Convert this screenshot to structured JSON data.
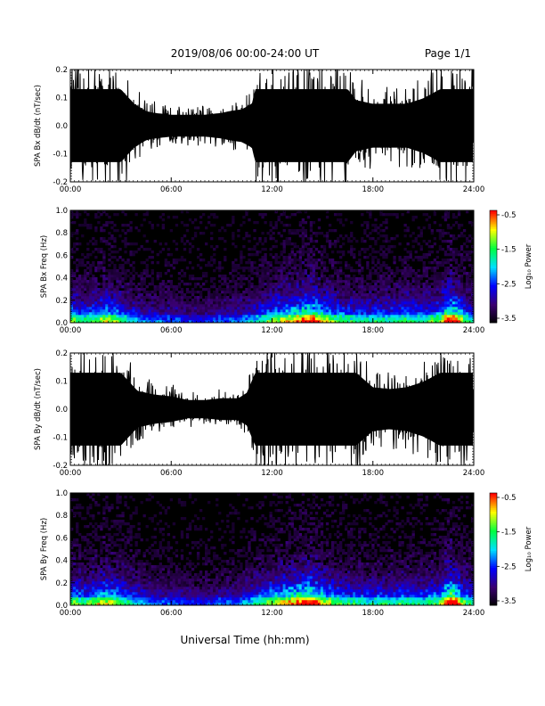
{
  "header": {
    "title": "2019/08/06  00:00-24:00 UT",
    "page": "Page 1/1"
  },
  "x_axis": {
    "label": "Universal Time (hh:mm)",
    "ticks": [
      "00:00",
      "06:00",
      "12:00",
      "18:00",
      "24:00"
    ],
    "range_hours": [
      0,
      24
    ]
  },
  "colorbar": {
    "label": "Log₁₀ Power",
    "ticks": [
      "-0.5",
      "-1.5",
      "-2.5",
      "-3.5"
    ],
    "range": [
      -3.5,
      -0.5
    ],
    "colors": [
      "#000000",
      "#3a0070",
      "#0000ff",
      "#00e0ff",
      "#00ff40",
      "#ffff00",
      "#ff0000"
    ]
  },
  "chart_data": [
    {
      "type": "line",
      "ylabel": "SPA Bx dB/dt (nT/sec)",
      "ylim": [
        -0.2,
        0.2
      ],
      "yticks": [
        "0.2",
        "0.1",
        "0.0",
        "-0.1",
        "-0.2"
      ],
      "xlim": [
        0,
        24
      ],
      "series": [
        {
          "color": "#000000",
          "x": [
            0,
            1,
            2,
            3,
            3.8,
            4.5,
            5,
            6,
            7,
            8,
            9,
            9.5,
            10.2,
            10.8,
            11,
            12,
            13,
            14,
            15,
            16,
            16.5,
            17,
            18,
            19,
            20,
            21,
            22,
            22.5,
            23,
            23.6,
            24
          ],
          "amplitude": [
            0.2,
            0.2,
            0.2,
            0.2,
            0.12,
            0.08,
            0.07,
            0.06,
            0.06,
            0.06,
            0.07,
            0.08,
            0.09,
            0.12,
            0.2,
            0.2,
            0.2,
            0.2,
            0.2,
            0.2,
            0.2,
            0.14,
            0.12,
            0.12,
            0.12,
            0.15,
            0.2,
            0.2,
            0.2,
            0.2,
            0.2
          ]
        }
      ]
    },
    {
      "type": "heatmap",
      "ylabel": "SPA Bx Freq (Hz)",
      "ylim": [
        0.0,
        1.0
      ],
      "yticks": [
        "1.0",
        "0.8",
        "0.6",
        "0.4",
        "0.2",
        "0.0"
      ],
      "xlim": [
        0,
        24
      ],
      "zlim": [
        -3.5,
        -0.5
      ],
      "activity": {
        "x": [
          0,
          1,
          2,
          3,
          4,
          5,
          6,
          7,
          8,
          9,
          10,
          11,
          12,
          12.5,
          13,
          13.5,
          14,
          14.5,
          15,
          16,
          17,
          18,
          19,
          20,
          21,
          22,
          22.4,
          22.7,
          23,
          23.5,
          24
        ],
        "level": [
          0.55,
          0.45,
          0.6,
          0.5,
          0.35,
          0.3,
          0.3,
          0.25,
          0.25,
          0.3,
          0.3,
          0.4,
          0.55,
          0.6,
          0.65,
          0.7,
          0.8,
          0.75,
          0.65,
          0.5,
          0.45,
          0.45,
          0.45,
          0.5,
          0.45,
          0.55,
          0.8,
          0.85,
          0.7,
          0.5,
          0.4
        ]
      }
    },
    {
      "type": "line",
      "ylabel": "SPA By dB/dt (nT/sec)",
      "ylim": [
        -0.2,
        0.2
      ],
      "yticks": [
        "0.2",
        "0.1",
        "0.0",
        "-0.1",
        "-0.2"
      ],
      "xlim": [
        0,
        24
      ],
      "series": [
        {
          "color": "#000000",
          "x": [
            0,
            1,
            2,
            3,
            3.5,
            4,
            5,
            6,
            7,
            8,
            9,
            10,
            10.5,
            11,
            12,
            13,
            14,
            15,
            16,
            17,
            18,
            19,
            20,
            21,
            22,
            22.5,
            23,
            24
          ],
          "amplitude": [
            0.2,
            0.2,
            0.2,
            0.2,
            0.15,
            0.1,
            0.08,
            0.07,
            0.05,
            0.05,
            0.06,
            0.06,
            0.09,
            0.2,
            0.2,
            0.2,
            0.2,
            0.2,
            0.2,
            0.2,
            0.12,
            0.11,
            0.12,
            0.15,
            0.2,
            0.2,
            0.2,
            0.2
          ]
        }
      ]
    },
    {
      "type": "heatmap",
      "ylabel": "SPA By Freq (Hz)",
      "ylim": [
        0.0,
        1.0
      ],
      "yticks": [
        "1.0",
        "0.8",
        "0.6",
        "0.4",
        "0.2",
        "0.0"
      ],
      "xlim": [
        0,
        24
      ],
      "zlim": [
        -3.5,
        -0.5
      ],
      "activity": {
        "x": [
          0,
          1,
          2,
          3,
          4,
          5,
          6,
          7,
          8,
          9,
          10,
          11,
          12,
          12.5,
          13,
          13.5,
          14,
          14.5,
          15,
          16,
          17,
          18,
          19,
          20,
          21,
          22,
          22.4,
          22.7,
          23,
          23.5,
          24
        ],
        "level": [
          0.55,
          0.5,
          0.65,
          0.55,
          0.4,
          0.3,
          0.3,
          0.25,
          0.25,
          0.3,
          0.3,
          0.45,
          0.6,
          0.65,
          0.7,
          0.75,
          0.85,
          0.8,
          0.65,
          0.5,
          0.45,
          0.45,
          0.45,
          0.5,
          0.45,
          0.55,
          0.85,
          0.9,
          0.75,
          0.5,
          0.4
        ]
      }
    }
  ]
}
